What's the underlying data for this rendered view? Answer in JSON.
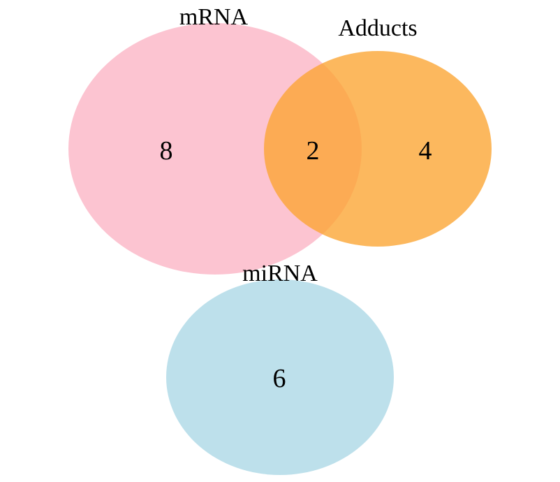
{
  "sets": [
    {
      "id": "mrna",
      "label": "mRNA",
      "color": "#fbb4c4"
    },
    {
      "id": "adducts",
      "label": "Adducts",
      "color": "#fba431"
    },
    {
      "id": "mirna",
      "label": "miRNA",
      "color": "#add8e6"
    }
  ],
  "counts": {
    "mrna_only": "8",
    "mrna_adducts": "2",
    "adducts_only": "4",
    "mirna_only": "6"
  }
}
